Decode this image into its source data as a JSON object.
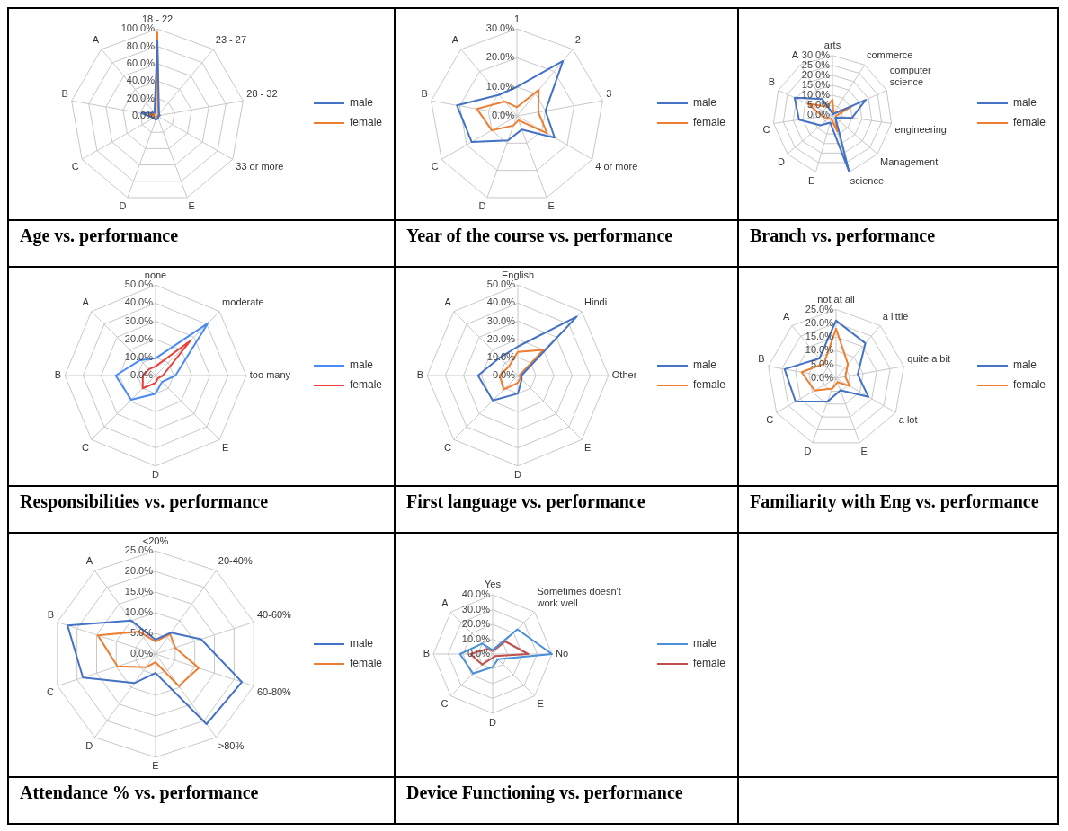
{
  "chart_data": [
    {
      "type": "radar",
      "title": "Age vs. performance",
      "categories": [
        "18 - 22",
        "23 - 27",
        "28 - 32",
        "33 or more",
        "E",
        "D",
        "C",
        "B",
        "A"
      ],
      "series": [
        {
          "name": "male",
          "color": "#4472c4",
          "values": [
            86,
            3,
            3,
            1,
            3,
            5,
            5,
            18,
            5
          ]
        },
        {
          "name": "female",
          "color": "#ed7d31",
          "values": [
            96,
            2,
            2,
            0,
            1,
            2,
            3,
            10,
            3
          ]
        }
      ],
      "ylim": [
        0,
        100
      ],
      "yticks": [
        {
          "value": 0,
          "label": "0.0%"
        },
        {
          "value": 20,
          "label": "20.0%"
        },
        {
          "value": 40,
          "label": "40.0%"
        },
        {
          "value": 60,
          "label": "60.0%"
        },
        {
          "value": 80,
          "label": "80.0%"
        },
        {
          "value": 100,
          "label": "100.0%"
        }
      ],
      "grid": true,
      "legend": "right",
      "marker": "none"
    },
    {
      "type": "radar",
      "title": "Year of the course vs. performance",
      "categories": [
        "1",
        "2",
        "3",
        "4 or more",
        "E",
        "D",
        "C",
        "B",
        "A"
      ],
      "series": [
        {
          "name": "male",
          "color": "#4472c4",
          "values": [
            10,
            24.7,
            10,
            15,
            5,
            9,
            18,
            21,
            9.5
          ]
        },
        {
          "name": "female",
          "color": "#ed7d31",
          "values": [
            3,
            11.7,
            7.5,
            12,
            1.6,
            3.5,
            10,
            14,
            6.5
          ]
        }
      ],
      "ylim": [
        0,
        30
      ],
      "yticks": [
        {
          "value": 0,
          "label": "0.0%"
        },
        {
          "value": 10,
          "label": "10.0%"
        },
        {
          "value": 20,
          "label": "20.0%"
        },
        {
          "value": 30,
          "label": "30.0%"
        }
      ],
      "grid": true,
      "legend": "right",
      "marker": "none"
    },
    {
      "type": "radar",
      "title": "Branch vs. performance",
      "categories": [
        "arts",
        "commerce",
        "computer science",
        "engineering",
        "Management",
        "science",
        "E",
        "D",
        "C",
        "B",
        "A"
      ],
      "series": [
        {
          "name": "male",
          "color": "#4472c4",
          "values": [
            1,
            0.5,
            18.4,
            10,
            2,
            29.8,
            4,
            8,
            17,
            21,
            9.6
          ]
        },
        {
          "name": "female",
          "color": "#ed7d31",
          "values": [
            7.8,
            1,
            11,
            2,
            2,
            8.7,
            2,
            3,
            5,
            13.8,
            5
          ]
        }
      ],
      "ylim": [
        0,
        30
      ],
      "yticks": [
        {
          "value": 0,
          "label": "0.0%"
        },
        {
          "value": 5,
          "label": "5.0%"
        },
        {
          "value": 10,
          "label": "10.0%"
        },
        {
          "value": 15,
          "label": "15.0%"
        },
        {
          "value": 20,
          "label": "20.0%"
        },
        {
          "value": 25,
          "label": "25.0%"
        },
        {
          "value": 30,
          "label": "30.0%"
        }
      ],
      "grid": true,
      "legend": "right",
      "marker": "none"
    },
    {
      "type": "radar",
      "title": "Responsibilities vs. performance",
      "categories": [
        "none",
        "moderate",
        "too many",
        "E",
        "D",
        "C",
        "B",
        "A"
      ],
      "series": [
        {
          "name": "male",
          "color": "#4a8af4",
          "values": [
            9.5,
            41,
            11,
            5,
            10,
            19,
            22,
            12
          ]
        },
        {
          "name": "female",
          "color": "#e8403a",
          "values": [
            5,
            27,
            4,
            2,
            4,
            10,
            7,
            5
          ]
        }
      ],
      "ylim": [
        0,
        50
      ],
      "yticks": [
        {
          "value": 0,
          "label": "0.0%"
        },
        {
          "value": 10,
          "label": "10.0%"
        },
        {
          "value": 20,
          "label": "20.0%"
        },
        {
          "value": 30,
          "label": "30.0%"
        },
        {
          "value": 40,
          "label": "40.0%"
        },
        {
          "value": 50,
          "label": "50.0%"
        }
      ],
      "grid": true,
      "legend": "right",
      "marker": "none"
    },
    {
      "type": "radar",
      "title": "First language vs. performance",
      "categories": [
        "English",
        "Hindi",
        "Other",
        "E",
        "D",
        "C",
        "B",
        "A"
      ],
      "series": [
        {
          "name": "male",
          "color": "#4472c4",
          "values": [
            16,
            46,
            2,
            3,
            10,
            19.5,
            22,
            14
          ]
        },
        {
          "name": "female",
          "color": "#ed7d31",
          "values": [
            13,
            20,
            1,
            2,
            4,
            11,
            10,
            7
          ]
        }
      ],
      "ylim": [
        0,
        50
      ],
      "yticks": [
        {
          "value": 0,
          "label": "0.0%"
        },
        {
          "value": 10,
          "label": "10.0%"
        },
        {
          "value": 20,
          "label": "20.0%"
        },
        {
          "value": 30,
          "label": "30.0%"
        },
        {
          "value": 40,
          "label": "40.0%"
        },
        {
          "value": 50,
          "label": "50.0%"
        }
      ],
      "grid": true,
      "legend": "right",
      "marker": "none"
    },
    {
      "type": "radar",
      "title": "Familiarity with Eng vs. performance",
      "categories": [
        "not at all",
        "a little",
        "quite a bit",
        "a lot",
        "E",
        "D",
        "C",
        "B",
        "A"
      ],
      "series": [
        {
          "name": "male",
          "color": "#4472c4",
          "values": [
            21,
            16.6,
            8,
            13.6,
            4.7,
            9,
            17,
            19,
            9.4
          ]
        },
        {
          "name": "female",
          "color": "#ed7d31",
          "values": [
            18,
            6.7,
            3.4,
            5.8,
            1.5,
            4,
            9,
            12.7,
            6.9
          ]
        }
      ],
      "ylim": [
        0,
        25
      ],
      "yticks": [
        {
          "value": 0,
          "label": "0.0%"
        },
        {
          "value": 5,
          "label": "5.0%"
        },
        {
          "value": 10,
          "label": "10.0%"
        },
        {
          "value": 15,
          "label": "15.0%"
        },
        {
          "value": 20,
          "label": "20.0%"
        },
        {
          "value": 25,
          "label": "25.0%"
        }
      ],
      "grid": true,
      "legend": "right",
      "marker": "none"
    },
    {
      "type": "radar",
      "title": "Attendance % vs. performance",
      "categories": [
        "<20%",
        "20-40%",
        "40-60%",
        "60-80%",
        ">80%",
        "E",
        "D",
        "C",
        "B",
        "A"
      ],
      "series": [
        {
          "name": "male",
          "color": "#4472c4",
          "values": [
            3.5,
            6.4,
            11.6,
            22,
            21,
            4.6,
            8.7,
            18.5,
            22.4,
            10
          ]
        },
        {
          "name": "female",
          "color": "#ed7d31",
          "values": [
            3,
            6,
            5,
            11,
            9.6,
            2,
            4,
            9.7,
            14.7,
            6.7
          ]
        }
      ],
      "ylim": [
        0,
        25
      ],
      "yticks": [
        {
          "value": 0,
          "label": "0.0%"
        },
        {
          "value": 5,
          "label": "5.0%"
        },
        {
          "value": 10,
          "label": "10.0%"
        },
        {
          "value": 15,
          "label": "15.0%"
        },
        {
          "value": 20,
          "label": "20.0%"
        },
        {
          "value": 25,
          "label": "25.0%"
        }
      ],
      "grid": true,
      "legend": "right",
      "marker": "none"
    },
    {
      "type": "radar",
      "title": "Device Functioning vs. performance",
      "categories": [
        "Yes",
        "Sometimes doesn't work well",
        "No",
        "E",
        "D",
        "C",
        "B",
        "A"
      ],
      "series": [
        {
          "name": "male",
          "color": "#4a90d9",
          "values": [
            2.7,
            23.6,
            40,
            5,
            8.8,
            18.7,
            22,
            10
          ]
        },
        {
          "name": "female",
          "color": "#c0504d",
          "values": [
            2,
            12,
            24,
            2,
            2.5,
            10,
            15,
            5
          ]
        }
      ],
      "ylim": [
        0,
        40
      ],
      "yticks": [
        {
          "value": 0,
          "label": "0.0%"
        },
        {
          "value": 10,
          "label": "10.0%"
        },
        {
          "value": 20,
          "label": "20.0%"
        },
        {
          "value": 30,
          "label": "30.0%"
        },
        {
          "value": 40,
          "label": "40.0%"
        }
      ],
      "grid": true,
      "legend": "right",
      "marker": "none"
    }
  ]
}
